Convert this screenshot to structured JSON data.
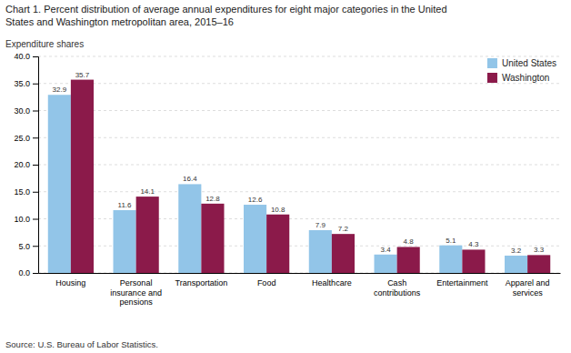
{
  "chart_data": {
    "type": "bar",
    "title": "Chart 1. Percent distribution of average annual expenditures for eight major categories in the United\nStates and Washington metropolitan area, 2015–16",
    "ylabel": "Expenditure shares",
    "source": "Source: U.S. Bureau of Labor Statistics.",
    "categories": [
      "Housing",
      "Personal\ninsurance and\npensions",
      "Transportation",
      "Food",
      "Healthcare",
      "Cash\ncontributions",
      "Entertainment",
      "Apparel and\nservices"
    ],
    "series": [
      {
        "name": "United States",
        "color": "#92C5E8",
        "values": [
          32.9,
          11.6,
          16.4,
          12.6,
          7.9,
          3.4,
          5.1,
          3.2
        ]
      },
      {
        "name": "Washington",
        "color": "#8B1A4A",
        "values": [
          35.7,
          14.1,
          12.8,
          10.8,
          7.2,
          4.8,
          4.3,
          3.3
        ]
      }
    ],
    "ylim": [
      0,
      40
    ],
    "yticks": [
      {
        "value": 0,
        "label": "0.0"
      },
      {
        "value": 5,
        "label": "5.0"
      },
      {
        "value": 10,
        "label": "10.0"
      },
      {
        "value": 15,
        "label": "15.0"
      },
      {
        "value": 20,
        "label": "20.0"
      },
      {
        "value": 25,
        "label": "25.0"
      },
      {
        "value": 30,
        "label": "30.0"
      },
      {
        "value": 35,
        "label": "35.0"
      },
      {
        "value": 40,
        "label": "40.0"
      }
    ],
    "grid": true,
    "legend": "upper right",
    "data_labels": true
  }
}
